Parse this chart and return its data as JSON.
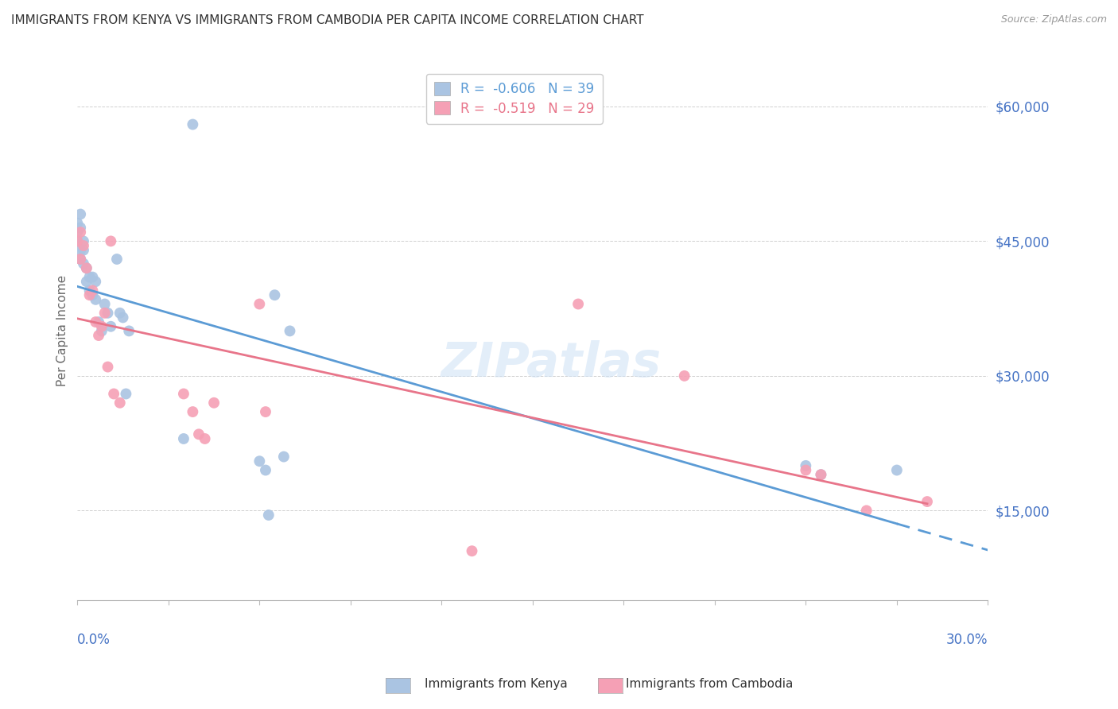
{
  "title": "IMMIGRANTS FROM KENYA VS IMMIGRANTS FROM CAMBODIA PER CAPITA INCOME CORRELATION CHART",
  "source": "Source: ZipAtlas.com",
  "ylabel": "Per Capita Income",
  "xmin": 0.0,
  "xmax": 0.3,
  "ymin": 5000,
  "ymax": 65000,
  "kenya_color": "#aac4e2",
  "cambodia_color": "#f5a0b5",
  "kenya_line_color": "#5b9bd5",
  "cambodia_line_color": "#e8758a",
  "kenya_R": -0.606,
  "kenya_N": 39,
  "cambodia_R": -0.519,
  "cambodia_N": 29,
  "legend_label_kenya": "R =  -0.606   N = 39",
  "legend_label_cambodia": "R =  -0.519   N = 29",
  "watermark": "ZIPatlas",
  "kenya_x": [
    0.0,
    0.0,
    0.0,
    0.001,
    0.001,
    0.001,
    0.001,
    0.002,
    0.002,
    0.002,
    0.003,
    0.003,
    0.004,
    0.004,
    0.005,
    0.005,
    0.006,
    0.006,
    0.007,
    0.008,
    0.009,
    0.01,
    0.011,
    0.013,
    0.014,
    0.015,
    0.016,
    0.017,
    0.035,
    0.038,
    0.06,
    0.062,
    0.063,
    0.065,
    0.068,
    0.07,
    0.24,
    0.245,
    0.27
  ],
  "kenya_y": [
    47000,
    46000,
    45000,
    48000,
    46500,
    44000,
    43000,
    45000,
    44000,
    42500,
    42000,
    40500,
    41000,
    39500,
    41000,
    39000,
    40500,
    38500,
    36000,
    35000,
    38000,
    37000,
    35500,
    43000,
    37000,
    36500,
    28000,
    35000,
    23000,
    58000,
    20500,
    19500,
    14500,
    39000,
    21000,
    35000,
    20000,
    19000,
    19500
  ],
  "cambodia_x": [
    0.0,
    0.001,
    0.001,
    0.002,
    0.003,
    0.004,
    0.005,
    0.006,
    0.007,
    0.008,
    0.009,
    0.01,
    0.011,
    0.012,
    0.014,
    0.035,
    0.038,
    0.04,
    0.042,
    0.045,
    0.06,
    0.062,
    0.13,
    0.165,
    0.2,
    0.24,
    0.245,
    0.26,
    0.28
  ],
  "cambodia_y": [
    45000,
    46000,
    43000,
    44500,
    42000,
    39000,
    39500,
    36000,
    34500,
    35500,
    37000,
    31000,
    45000,
    28000,
    27000,
    28000,
    26000,
    23500,
    23000,
    27000,
    38000,
    26000,
    10500,
    38000,
    30000,
    19500,
    19000,
    15000,
    16000
  ],
  "axis_color": "#4472c4",
  "grid_color": "#d0d0d0",
  "title_color": "#333333",
  "title_fontsize": 11,
  "source_color": "#999999",
  "source_fontsize": 9,
  "ylabel_color": "#666666",
  "ytick_color": "#4472c4",
  "xtick_color": "#4472c4",
  "yticks": [
    15000,
    30000,
    45000,
    60000
  ],
  "ytick_labels": [
    "$15,000",
    "$30,000",
    "$45,000",
    "$60,000"
  ]
}
